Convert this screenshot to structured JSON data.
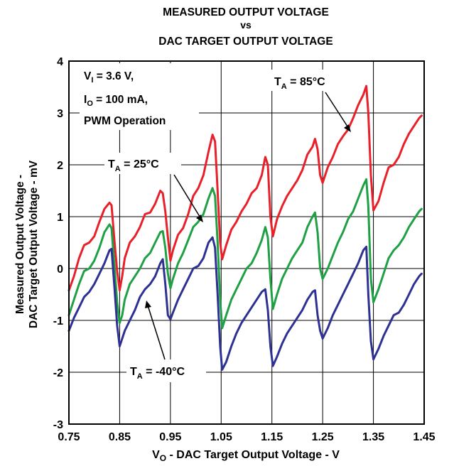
{
  "chart_data": {
    "type": "line",
    "title_lines": [
      "MEASURED OUTPUT VOLTAGE",
      "vs",
      "DAC TARGET OUTPUT VOLTAGE"
    ],
    "xlabel": {
      "main": "V",
      "sub": "O",
      "rest": " - DAC Target Output Voltage - V"
    },
    "ylabel_lines": [
      "Measured Output Voltage -",
      "DAC Target Output Voltage - mV"
    ],
    "xlim": [
      0.75,
      1.45
    ],
    "ylim": [
      -3,
      4
    ],
    "x_ticks": [
      "0.75",
      "0.85",
      "0.95",
      "1.05",
      "1.15",
      "1.25",
      "1.35",
      "1.45"
    ],
    "y_ticks": [
      "-3",
      "-2",
      "-1",
      "0",
      "1",
      "2",
      "3",
      "4"
    ],
    "grid": true,
    "conditions": [
      {
        "main": "V",
        "sub": "I",
        "rest": " = 3.6 V,"
      },
      {
        "main": "I",
        "sub": "O",
        "rest": " = 100 mA,"
      },
      {
        "main": "PWM Operation",
        "sub": "",
        "rest": ""
      }
    ],
    "series": [
      {
        "name": "T_A = 85°C",
        "label": {
          "main": "T",
          "sub": "A",
          "rest": " = 85°C"
        },
        "color": "#e8202a",
        "points": [
          [
            0.75,
            -0.42
          ],
          [
            0.76,
            -0.15
          ],
          [
            0.77,
            0.2
          ],
          [
            0.78,
            0.45
          ],
          [
            0.79,
            0.5
          ],
          [
            0.8,
            0.62
          ],
          [
            0.81,
            0.9
          ],
          [
            0.82,
            1.15
          ],
          [
            0.83,
            1.27
          ],
          [
            0.834,
            1.22
          ],
          [
            0.84,
            0.5
          ],
          [
            0.845,
            -0.05
          ],
          [
            0.85,
            -0.42
          ],
          [
            0.855,
            -0.15
          ],
          [
            0.86,
            0.2
          ],
          [
            0.87,
            0.5
          ],
          [
            0.88,
            0.62
          ],
          [
            0.89,
            0.8
          ],
          [
            0.9,
            1.05
          ],
          [
            0.91,
            1.08
          ],
          [
            0.92,
            1.25
          ],
          [
            0.93,
            1.5
          ],
          [
            0.935,
            1.45
          ],
          [
            0.94,
            1.1
          ],
          [
            0.945,
            0.6
          ],
          [
            0.95,
            0.15
          ],
          [
            0.955,
            0.35
          ],
          [
            0.965,
            0.65
          ],
          [
            0.975,
            0.78
          ],
          [
            0.985,
            1.05
          ],
          [
            0.995,
            1.4
          ],
          [
            1.005,
            1.55
          ],
          [
            1.015,
            1.8
          ],
          [
            1.025,
            2.25
          ],
          [
            1.033,
            2.58
          ],
          [
            1.038,
            2.45
          ],
          [
            1.043,
            1.5
          ],
          [
            1.048,
            0.5
          ],
          [
            1.052,
            0.18
          ],
          [
            1.06,
            0.45
          ],
          [
            1.07,
            0.75
          ],
          [
            1.08,
            0.9
          ],
          [
            1.09,
            1.1
          ],
          [
            1.1,
            1.25
          ],
          [
            1.11,
            1.45
          ],
          [
            1.12,
            1.55
          ],
          [
            1.13,
            1.8
          ],
          [
            1.137,
            2.15
          ],
          [
            1.142,
            2.0
          ],
          [
            1.147,
            1.0
          ],
          [
            1.152,
            0.62
          ],
          [
            1.16,
            0.95
          ],
          [
            1.17,
            1.2
          ],
          [
            1.18,
            1.4
          ],
          [
            1.19,
            1.55
          ],
          [
            1.2,
            1.7
          ],
          [
            1.21,
            1.9
          ],
          [
            1.22,
            2.2
          ],
          [
            1.23,
            2.35
          ],
          [
            1.235,
            2.5
          ],
          [
            1.24,
            2.3
          ],
          [
            1.245,
            1.8
          ],
          [
            1.25,
            1.65
          ],
          [
            1.26,
            1.95
          ],
          [
            1.27,
            2.15
          ],
          [
            1.28,
            2.4
          ],
          [
            1.29,
            2.55
          ],
          [
            1.3,
            2.68
          ],
          [
            1.31,
            2.9
          ],
          [
            1.32,
            3.15
          ],
          [
            1.33,
            3.35
          ],
          [
            1.336,
            3.52
          ],
          [
            1.34,
            3.0
          ],
          [
            1.345,
            1.8
          ],
          [
            1.35,
            1.12
          ],
          [
            1.36,
            1.3
          ],
          [
            1.37,
            1.65
          ],
          [
            1.38,
            1.95
          ],
          [
            1.39,
            2.0
          ],
          [
            1.4,
            2.15
          ],
          [
            1.41,
            2.4
          ],
          [
            1.42,
            2.6
          ],
          [
            1.43,
            2.75
          ],
          [
            1.44,
            2.9
          ],
          [
            1.445,
            2.95
          ]
        ]
      },
      {
        "name": "T_A = 25°C",
        "label": {
          "main": "T",
          "sub": "A",
          "rest": " = 25°C"
        },
        "color": "#1fa044",
        "points": [
          [
            0.75,
            -0.9
          ],
          [
            0.76,
            -0.6
          ],
          [
            0.77,
            -0.3
          ],
          [
            0.78,
            -0.05
          ],
          [
            0.79,
            0.0
          ],
          [
            0.8,
            0.15
          ],
          [
            0.81,
            0.4
          ],
          [
            0.82,
            0.7
          ],
          [
            0.83,
            0.85
          ],
          [
            0.834,
            0.78
          ],
          [
            0.84,
            0.0
          ],
          [
            0.845,
            -0.65
          ],
          [
            0.85,
            -1.05
          ],
          [
            0.855,
            -0.9
          ],
          [
            0.86,
            -0.6
          ],
          [
            0.87,
            -0.3
          ],
          [
            0.88,
            -0.15
          ],
          [
            0.89,
            0.0
          ],
          [
            0.9,
            0.2
          ],
          [
            0.91,
            0.3
          ],
          [
            0.92,
            0.5
          ],
          [
            0.93,
            0.7
          ],
          [
            0.935,
            0.72
          ],
          [
            0.94,
            0.4
          ],
          [
            0.945,
            -0.1
          ],
          [
            0.95,
            -0.38
          ],
          [
            0.955,
            -0.2
          ],
          [
            0.965,
            0.1
          ],
          [
            0.975,
            0.3
          ],
          [
            0.985,
            0.55
          ],
          [
            0.995,
            0.8
          ],
          [
            1.005,
            0.9
          ],
          [
            1.015,
            1.05
          ],
          [
            1.025,
            1.35
          ],
          [
            1.033,
            1.55
          ],
          [
            1.038,
            1.4
          ],
          [
            1.043,
            0.5
          ],
          [
            1.048,
            -0.6
          ],
          [
            1.052,
            -1.15
          ],
          [
            1.06,
            -0.9
          ],
          [
            1.07,
            -0.6
          ],
          [
            1.08,
            -0.4
          ],
          [
            1.09,
            -0.2
          ],
          [
            1.1,
            0.0
          ],
          [
            1.11,
            0.1
          ],
          [
            1.12,
            0.3
          ],
          [
            1.13,
            0.55
          ],
          [
            1.137,
            0.8
          ],
          [
            1.142,
            0.6
          ],
          [
            1.147,
            -0.2
          ],
          [
            1.152,
            -0.78
          ],
          [
            1.16,
            -0.5
          ],
          [
            1.17,
            -0.2
          ],
          [
            1.18,
            0.0
          ],
          [
            1.19,
            0.2
          ],
          [
            1.2,
            0.35
          ],
          [
            1.21,
            0.5
          ],
          [
            1.22,
            0.8
          ],
          [
            1.23,
            1.0
          ],
          [
            1.235,
            1.08
          ],
          [
            1.24,
            0.7
          ],
          [
            1.245,
            0.0
          ],
          [
            1.25,
            -0.2
          ],
          [
            1.26,
            0.0
          ],
          [
            1.27,
            0.25
          ],
          [
            1.28,
            0.5
          ],
          [
            1.29,
            0.7
          ],
          [
            1.3,
            0.95
          ],
          [
            1.31,
            1.1
          ],
          [
            1.32,
            1.35
          ],
          [
            1.33,
            1.6
          ],
          [
            1.336,
            1.72
          ],
          [
            1.34,
            1.2
          ],
          [
            1.345,
            -0.2
          ],
          [
            1.35,
            -0.65
          ],
          [
            1.36,
            -0.4
          ],
          [
            1.37,
            -0.1
          ],
          [
            1.38,
            0.2
          ],
          [
            1.39,
            0.35
          ],
          [
            1.4,
            0.45
          ],
          [
            1.41,
            0.6
          ],
          [
            1.42,
            0.8
          ],
          [
            1.43,
            0.95
          ],
          [
            1.44,
            1.1
          ],
          [
            1.445,
            1.15
          ]
        ]
      },
      {
        "name": "T_A = -40°C",
        "label": {
          "main": "T",
          "sub": "A",
          "rest": " = -40°C"
        },
        "color": "#2e3192",
        "points": [
          [
            0.75,
            -1.2
          ],
          [
            0.76,
            -0.95
          ],
          [
            0.77,
            -0.75
          ],
          [
            0.78,
            -0.55
          ],
          [
            0.79,
            -0.45
          ],
          [
            0.8,
            -0.3
          ],
          [
            0.81,
            -0.1
          ],
          [
            0.82,
            0.1
          ],
          [
            0.83,
            0.35
          ],
          [
            0.834,
            0.38
          ],
          [
            0.84,
            -0.4
          ],
          [
            0.845,
            -1.1
          ],
          [
            0.85,
            -1.5
          ],
          [
            0.855,
            -1.35
          ],
          [
            0.86,
            -1.2
          ],
          [
            0.87,
            -1.0
          ],
          [
            0.88,
            -0.8
          ],
          [
            0.89,
            -0.55
          ],
          [
            0.9,
            -0.4
          ],
          [
            0.91,
            -0.3
          ],
          [
            0.92,
            -0.15
          ],
          [
            0.93,
            0.1
          ],
          [
            0.935,
            0.18
          ],
          [
            0.94,
            -0.3
          ],
          [
            0.945,
            -0.9
          ],
          [
            0.95,
            -0.98
          ],
          [
            0.955,
            -0.85
          ],
          [
            0.965,
            -0.6
          ],
          [
            0.975,
            -0.4
          ],
          [
            0.985,
            -0.2
          ],
          [
            0.995,
            0.0
          ],
          [
            1.005,
            0.05
          ],
          [
            1.015,
            0.2
          ],
          [
            1.025,
            0.5
          ],
          [
            1.033,
            0.6
          ],
          [
            1.038,
            0.4
          ],
          [
            1.043,
            -0.5
          ],
          [
            1.048,
            -1.5
          ],
          [
            1.052,
            -1.95
          ],
          [
            1.06,
            -1.8
          ],
          [
            1.07,
            -1.5
          ],
          [
            1.08,
            -1.25
          ],
          [
            1.09,
            -1.05
          ],
          [
            1.1,
            -0.9
          ],
          [
            1.11,
            -0.75
          ],
          [
            1.12,
            -0.6
          ],
          [
            1.13,
            -0.45
          ],
          [
            1.137,
            -0.4
          ],
          [
            1.142,
            -0.8
          ],
          [
            1.147,
            -1.5
          ],
          [
            1.152,
            -1.88
          ],
          [
            1.16,
            -1.7
          ],
          [
            1.17,
            -1.45
          ],
          [
            1.18,
            -1.25
          ],
          [
            1.19,
            -1.1
          ],
          [
            1.2,
            -0.95
          ],
          [
            1.21,
            -0.8
          ],
          [
            1.22,
            -0.6
          ],
          [
            1.23,
            -0.45
          ],
          [
            1.235,
            -0.42
          ],
          [
            1.24,
            -0.9
          ],
          [
            1.245,
            -1.2
          ],
          [
            1.25,
            -1.35
          ],
          [
            1.26,
            -1.15
          ],
          [
            1.27,
            -0.9
          ],
          [
            1.28,
            -0.7
          ],
          [
            1.29,
            -0.5
          ],
          [
            1.3,
            -0.3
          ],
          [
            1.31,
            -0.1
          ],
          [
            1.32,
            0.1
          ],
          [
            1.33,
            0.35
          ],
          [
            1.336,
            0.42
          ],
          [
            1.34,
            -0.5
          ],
          [
            1.345,
            -1.4
          ],
          [
            1.35,
            -1.75
          ],
          [
            1.36,
            -1.55
          ],
          [
            1.37,
            -1.3
          ],
          [
            1.38,
            -1.1
          ],
          [
            1.39,
            -0.9
          ],
          [
            1.4,
            -0.85
          ],
          [
            1.41,
            -0.7
          ],
          [
            1.42,
            -0.5
          ],
          [
            1.43,
            -0.3
          ],
          [
            1.44,
            -0.15
          ],
          [
            1.445,
            -0.1
          ]
        ]
      }
    ]
  }
}
